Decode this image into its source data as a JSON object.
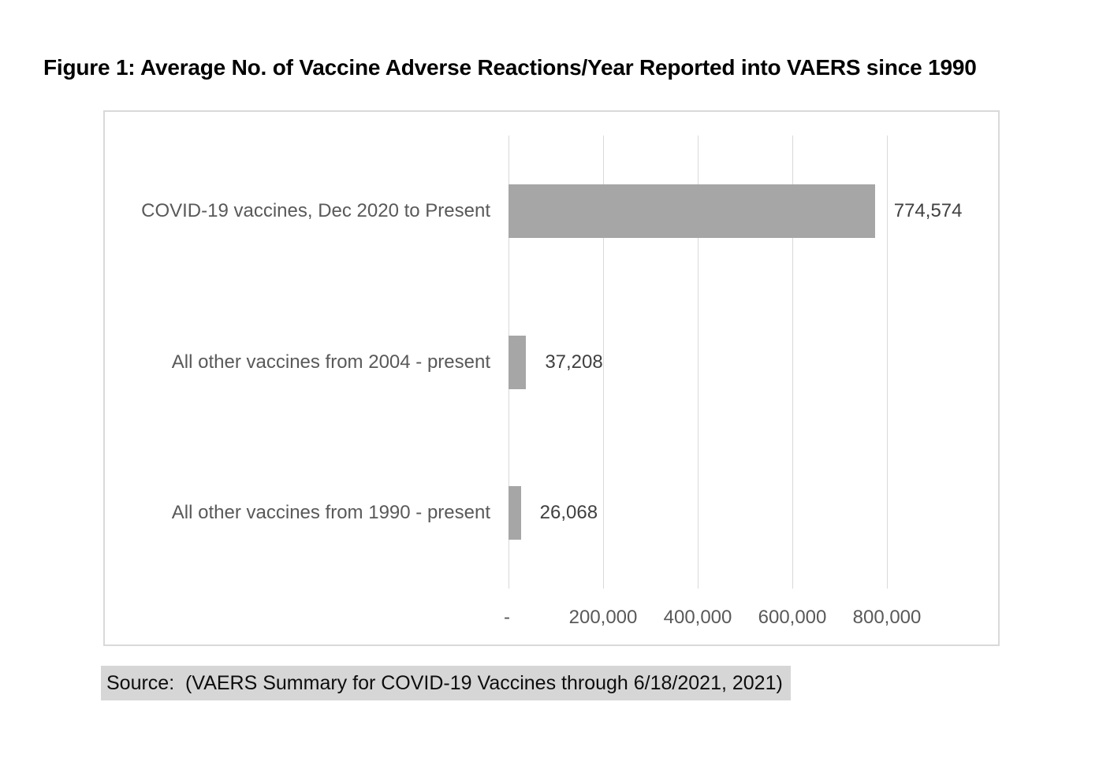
{
  "page": {
    "title": "Figure 1: Average No. of Vaccine Adverse Reactions/Year Reported into VAERS since 1990",
    "source_note": "Source:  (VAERS Summary for COVID-19 Vaccines through 6/18/2021, 2021)"
  },
  "chart_data": {
    "type": "bar",
    "orientation": "horizontal",
    "title": "Figure 1: Average No. of Vaccine Adverse Reactions/Year Reported into VAERS since 1990",
    "categories": [
      "COVID-19 vaccines, Dec 2020 to Present",
      "All other vaccines from 2004 - present",
      "All other vaccines from 1990 - present"
    ],
    "values": [
      774574,
      37208,
      26068
    ],
    "value_labels": [
      "774,574",
      "37,208",
      "26,068"
    ],
    "x_ticks": [
      "-",
      "200,000",
      "400,000",
      "600,000",
      "800,000"
    ],
    "x_tick_values": [
      0,
      200000,
      400000,
      600000,
      800000
    ],
    "xlim": [
      0,
      800000
    ],
    "xlabel": "",
    "ylabel": "",
    "grid": true,
    "legend": false,
    "colors": {
      "bar": "#a6a6a6",
      "gridline": "#d9d9d9",
      "frame_border": "#d9d9d9",
      "category_text": "#595959",
      "value_text": "#404040",
      "axis_text": "#595959",
      "title_text": "#000000",
      "source_highlight": "#d6d6d6"
    }
  }
}
